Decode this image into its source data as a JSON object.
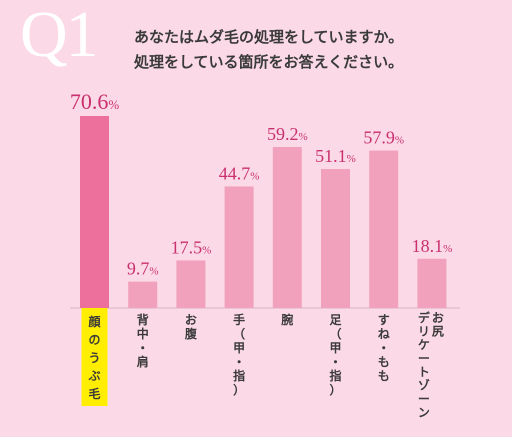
{
  "header": {
    "q_label": "Q1",
    "question_line1": "あなたはムダ毛の処理をしていますか。",
    "question_line2": "処理をしている箇所をお答えください。"
  },
  "chart_data": {
    "type": "bar",
    "categories": [
      "顔のうぶ毛",
      "背中・肩",
      "お腹",
      "手（甲・指）",
      "腕",
      "足（甲・指）",
      "すね・もも",
      "お尻デリケートゾーン"
    ],
    "values": [
      70.6,
      9.7,
      17.5,
      44.7,
      59.2,
      51.1,
      57.9,
      18.1
    ],
    "value_labels": [
      "70.6",
      "9.7",
      "17.5",
      "44.7",
      "59.2",
      "51.1",
      "57.9",
      "18.1"
    ],
    "unit": "%",
    "ylim": [
      0,
      70.6
    ],
    "grid": false,
    "highlight_index": 0
  },
  "colors": {
    "background": "#fbd9e6",
    "bar": "#f2a1bd",
    "bar_highlight": "#ec6f9c",
    "value_text": "#c9306f",
    "highlight_label_bg": "#ffee00"
  }
}
